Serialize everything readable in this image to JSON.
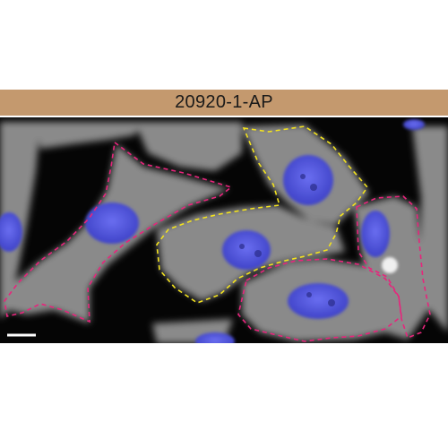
{
  "panel": {
    "antibody_id": "20920-1-AP"
  },
  "colors": {
    "label_bar": "#c4996e",
    "background_dark": "#050505",
    "cytoplasm": "#8e8e8e",
    "nucleus": "#4f53e0",
    "outline_magenta": "#e8247c",
    "outline_yellow": "#f2e21f",
    "scale_bar": "#ffffff"
  },
  "image": {
    "stain_channels": [
      "grey-cytoplasm",
      "blue-nucleus"
    ],
    "outline_styles": [
      "dashed-magenta",
      "dashed-yellow"
    ],
    "has_scale_bar": true
  }
}
